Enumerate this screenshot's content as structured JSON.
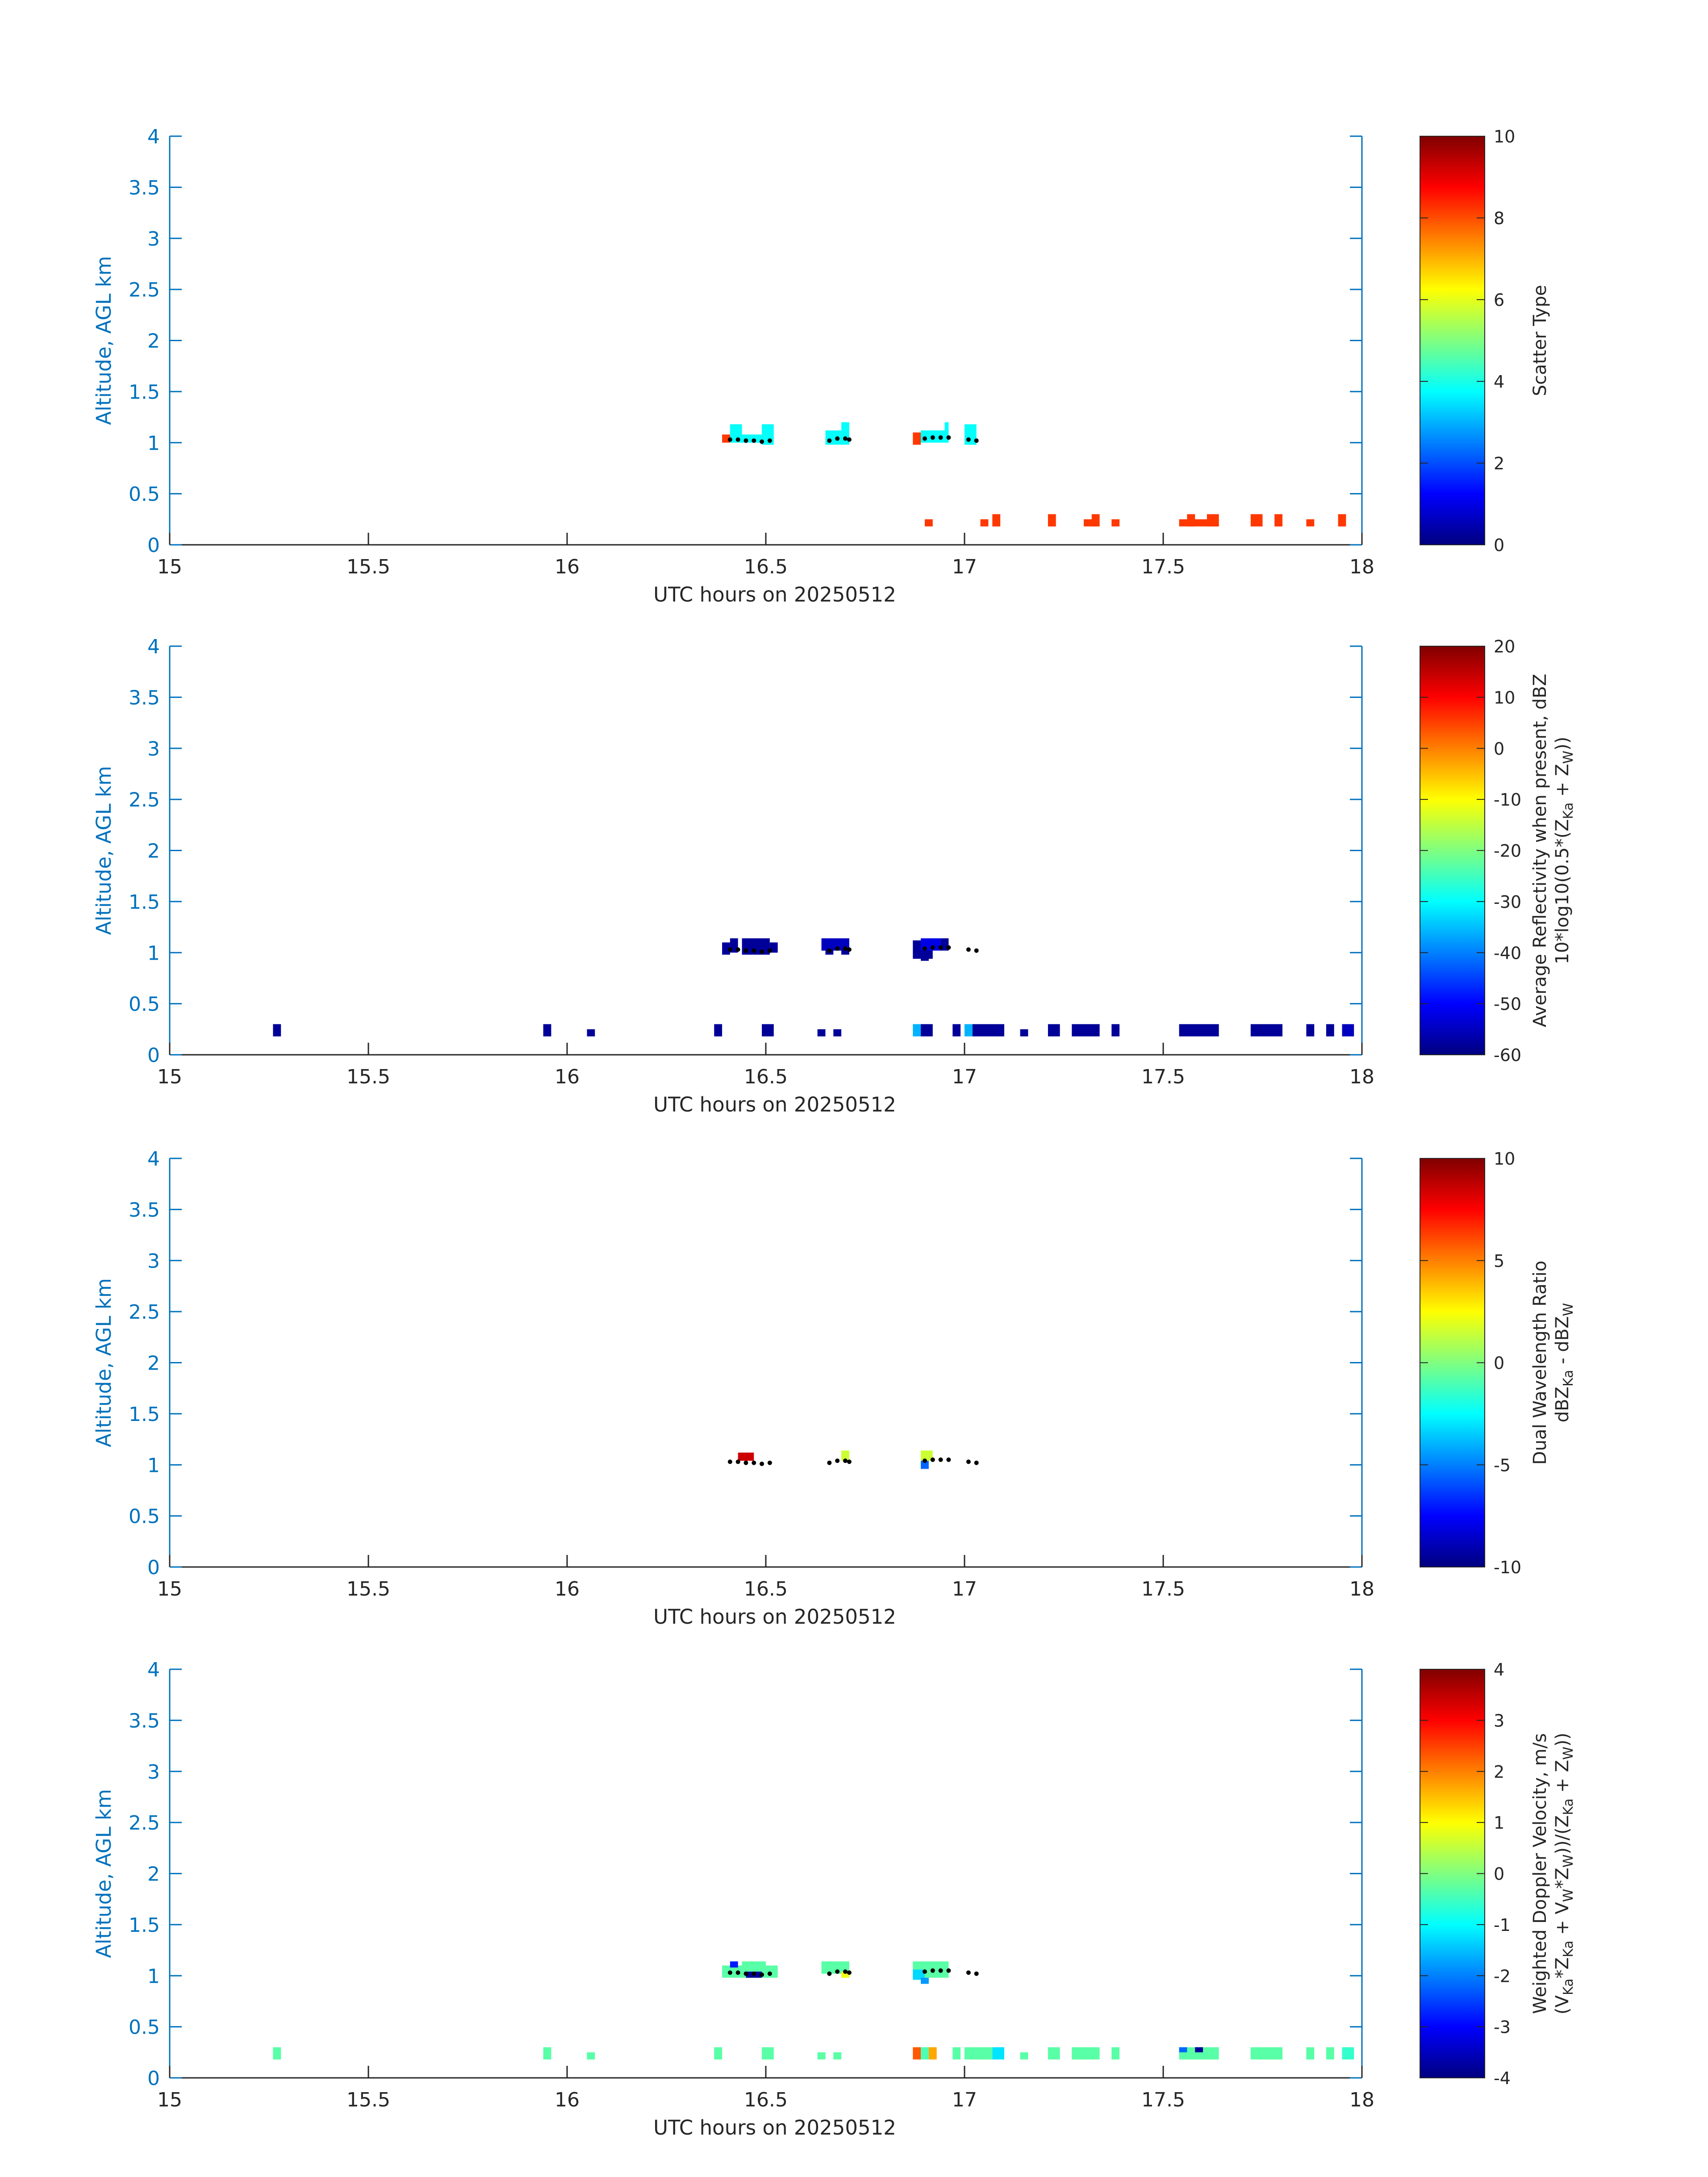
{
  "colors": {
    "axis_left": "#0072BD",
    "axis_right": "#0072BD",
    "axis_bottom": "#262626",
    "text": "#262626",
    "marker": "#000000"
  },
  "chart_data": [
    {
      "type": "heatmap",
      "xlabel": "UTC hours on 20250512",
      "ylabel": "Altitude, AGL km",
      "xlim": [
        15,
        18
      ],
      "ylim": [
        0,
        4
      ],
      "xticks": [
        "15",
        "15.5",
        "16",
        "16.5",
        "17",
        "17.5",
        "18"
      ],
      "yticks": [
        "0",
        "0.5",
        "1",
        "1.5",
        "2",
        "2.5",
        "3",
        "3.5",
        "4"
      ],
      "colormap": "jet",
      "clim": [
        0,
        10
      ],
      "colorbar_ticks": [
        "0",
        "2",
        "4",
        "6",
        "8",
        "10"
      ],
      "colorbar_label": "Scatter Type",
      "cells": [
        {
          "x0": 16.39,
          "x1": 16.41,
          "y0": 1.0,
          "y1": 1.08,
          "v": 8.2
        },
        {
          "x0": 16.41,
          "x1": 16.44,
          "y0": 1.0,
          "y1": 1.18,
          "v": 3.8
        },
        {
          "x0": 16.44,
          "x1": 16.49,
          "y0": 1.0,
          "y1": 1.08,
          "v": 3.8
        },
        {
          "x0": 16.49,
          "x1": 16.52,
          "y0": 0.98,
          "y1": 1.18,
          "v": 3.8
        },
        {
          "x0": 16.65,
          "x1": 16.71,
          "y0": 0.98,
          "y1": 1.12,
          "v": 3.8
        },
        {
          "x0": 16.69,
          "x1": 16.71,
          "y0": 1.1,
          "y1": 1.2,
          "v": 3.8
        },
        {
          "x0": 16.87,
          "x1": 16.89,
          "y0": 0.98,
          "y1": 1.1,
          "v": 8.2
        },
        {
          "x0": 16.89,
          "x1": 16.96,
          "y0": 1.0,
          "y1": 1.12,
          "v": 3.8
        },
        {
          "x0": 16.95,
          "x1": 16.96,
          "y0": 1.1,
          "y1": 1.2,
          "v": 3.8
        },
        {
          "x0": 17.0,
          "x1": 17.03,
          "y0": 0.98,
          "y1": 1.18,
          "v": 3.8
        },
        {
          "x0": 16.9,
          "x1": 16.92,
          "y0": 0.18,
          "y1": 0.25,
          "v": 8.2
        },
        {
          "x0": 17.04,
          "x1": 17.06,
          "y0": 0.18,
          "y1": 0.25,
          "v": 8.2
        },
        {
          "x0": 17.07,
          "x1": 17.09,
          "y0": 0.18,
          "y1": 0.3,
          "v": 8.2
        },
        {
          "x0": 17.21,
          "x1": 17.23,
          "y0": 0.18,
          "y1": 0.3,
          "v": 8.2
        },
        {
          "x0": 17.3,
          "x1": 17.33,
          "y0": 0.18,
          "y1": 0.25,
          "v": 8.2
        },
        {
          "x0": 17.32,
          "x1": 17.34,
          "y0": 0.18,
          "y1": 0.3,
          "v": 8.2
        },
        {
          "x0": 17.37,
          "x1": 17.39,
          "y0": 0.18,
          "y1": 0.25,
          "v": 8.2
        },
        {
          "x0": 17.54,
          "x1": 17.64,
          "y0": 0.18,
          "y1": 0.25,
          "v": 8.2
        },
        {
          "x0": 17.56,
          "x1": 17.58,
          "y0": 0.18,
          "y1": 0.3,
          "v": 8.2
        },
        {
          "x0": 17.61,
          "x1": 17.64,
          "y0": 0.18,
          "y1": 0.3,
          "v": 8.2
        },
        {
          "x0": 17.72,
          "x1": 17.75,
          "y0": 0.18,
          "y1": 0.3,
          "v": 8.2
        },
        {
          "x0": 17.78,
          "x1": 17.8,
          "y0": 0.18,
          "y1": 0.3,
          "v": 8.2
        },
        {
          "x0": 17.86,
          "x1": 17.88,
          "y0": 0.18,
          "y1": 0.25,
          "v": 8.2
        },
        {
          "x0": 17.94,
          "x1": 17.96,
          "y0": 0.18,
          "y1": 0.3,
          "v": 8.2
        }
      ]
    },
    {
      "type": "heatmap",
      "xlabel": "UTC hours on 20250512",
      "ylabel": "Altitude, AGL km",
      "xlim": [
        15,
        18
      ],
      "ylim": [
        0,
        4
      ],
      "xticks": [
        "15",
        "15.5",
        "16",
        "16.5",
        "17",
        "17.5",
        "18"
      ],
      "yticks": [
        "0",
        "0.5",
        "1",
        "1.5",
        "2",
        "2.5",
        "3",
        "3.5",
        "4"
      ],
      "colormap": "jet",
      "clim": [
        -60,
        20
      ],
      "colorbar_ticks": [
        "-60",
        "-50",
        "-40",
        "-30",
        "-20",
        "-10",
        "0",
        "10",
        "20"
      ],
      "colorbar_label": "Average Reflectivity when present, dBZ",
      "colorbar_label2": "10*log10(0.5*(Z",
      "colorbar_label2_sub1": "Ka",
      "colorbar_label2_mid": " + Z",
      "colorbar_label2_sub2": "W",
      "colorbar_label2_end": "))",
      "cells": [
        {
          "x0": 15.26,
          "x1": 15.28,
          "y0": 0.18,
          "y1": 0.3,
          "v": -58
        },
        {
          "x0": 15.94,
          "x1": 15.96,
          "y0": 0.18,
          "y1": 0.3,
          "v": -58
        },
        {
          "x0": 16.05,
          "x1": 16.07,
          "y0": 0.18,
          "y1": 0.25,
          "v": -58
        },
        {
          "x0": 16.37,
          "x1": 16.39,
          "y0": 0.18,
          "y1": 0.3,
          "v": -58
        },
        {
          "x0": 16.49,
          "x1": 16.52,
          "y0": 0.18,
          "y1": 0.3,
          "v": -58
        },
        {
          "x0": 16.63,
          "x1": 16.65,
          "y0": 0.18,
          "y1": 0.25,
          "v": -58
        },
        {
          "x0": 16.67,
          "x1": 16.69,
          "y0": 0.18,
          "y1": 0.25,
          "v": -58
        },
        {
          "x0": 16.87,
          "x1": 16.89,
          "y0": 0.18,
          "y1": 0.3,
          "v": -36
        },
        {
          "x0": 16.89,
          "x1": 16.92,
          "y0": 0.18,
          "y1": 0.3,
          "v": -58
        },
        {
          "x0": 16.97,
          "x1": 16.99,
          "y0": 0.18,
          "y1": 0.3,
          "v": -58
        },
        {
          "x0": 17.0,
          "x1": 17.02,
          "y0": 0.18,
          "y1": 0.3,
          "v": -36
        },
        {
          "x0": 17.02,
          "x1": 17.1,
          "y0": 0.18,
          "y1": 0.3,
          "v": -58
        },
        {
          "x0": 17.14,
          "x1": 17.16,
          "y0": 0.18,
          "y1": 0.25,
          "v": -58
        },
        {
          "x0": 17.21,
          "x1": 17.24,
          "y0": 0.18,
          "y1": 0.3,
          "v": -58
        },
        {
          "x0": 17.27,
          "x1": 17.34,
          "y0": 0.18,
          "y1": 0.3,
          "v": -58
        },
        {
          "x0": 17.37,
          "x1": 17.39,
          "y0": 0.18,
          "y1": 0.3,
          "v": -58
        },
        {
          "x0": 17.54,
          "x1": 17.64,
          "y0": 0.18,
          "y1": 0.3,
          "v": -58
        },
        {
          "x0": 17.72,
          "x1": 17.8,
          "y0": 0.18,
          "y1": 0.3,
          "v": -58
        },
        {
          "x0": 17.86,
          "x1": 17.88,
          "y0": 0.18,
          "y1": 0.3,
          "v": -58
        },
        {
          "x0": 17.91,
          "x1": 17.93,
          "y0": 0.18,
          "y1": 0.3,
          "v": -58
        },
        {
          "x0": 17.95,
          "x1": 17.98,
          "y0": 0.18,
          "y1": 0.3,
          "v": -55
        },
        {
          "x0": 16.39,
          "x1": 16.41,
          "y0": 0.98,
          "y1": 1.1,
          "v": -58
        },
        {
          "x0": 16.41,
          "x1": 16.43,
          "y0": 1.0,
          "y1": 1.14,
          "v": -58
        },
        {
          "x0": 16.44,
          "x1": 16.51,
          "y0": 0.98,
          "y1": 1.14,
          "v": -58
        },
        {
          "x0": 16.51,
          "x1": 16.53,
          "y0": 1.0,
          "y1": 1.1,
          "v": -58
        },
        {
          "x0": 16.64,
          "x1": 16.71,
          "y0": 1.02,
          "y1": 1.14,
          "v": -55
        },
        {
          "x0": 16.65,
          "x1": 16.67,
          "y0": 0.98,
          "y1": 1.04,
          "v": -58
        },
        {
          "x0": 16.69,
          "x1": 16.71,
          "y0": 0.98,
          "y1": 1.04,
          "v": -58
        },
        {
          "x0": 16.87,
          "x1": 16.92,
          "y0": 0.94,
          "y1": 1.12,
          "v": -58
        },
        {
          "x0": 16.89,
          "x1": 16.91,
          "y0": 0.92,
          "y1": 1.1,
          "v": -58
        },
        {
          "x0": 16.89,
          "x1": 16.94,
          "y0": 1.02,
          "y1": 1.14,
          "v": -52
        },
        {
          "x0": 16.94,
          "x1": 16.96,
          "y0": 1.02,
          "y1": 1.14,
          "v": -58
        }
      ]
    },
    {
      "type": "heatmap",
      "xlabel": "UTC hours on 20250512",
      "ylabel": "Altitude, AGL km",
      "xlim": [
        15,
        18
      ],
      "ylim": [
        0,
        4
      ],
      "xticks": [
        "15",
        "15.5",
        "16",
        "16.5",
        "17",
        "17.5",
        "18"
      ],
      "yticks": [
        "0",
        "0.5",
        "1",
        "1.5",
        "2",
        "2.5",
        "3",
        "3.5",
        "4"
      ],
      "colormap": "jet",
      "clim": [
        -10,
        10
      ],
      "colorbar_ticks": [
        "-10",
        "-5",
        "0",
        "5",
        "10"
      ],
      "colorbar_label": "Dual Wavelength Ratio",
      "colorbar_label2": "dBZ",
      "colorbar_label2_sub1": "Ka",
      "colorbar_label2_mid": " - dBZ",
      "colorbar_label2_sub2": "W",
      "colorbar_label2_end": "",
      "cells": [
        {
          "x0": 16.43,
          "x1": 16.47,
          "y0": 1.04,
          "y1": 1.12,
          "v": 8.5
        },
        {
          "x0": 16.69,
          "x1": 16.71,
          "y0": 1.04,
          "y1": 1.14,
          "v": 1.5
        },
        {
          "x0": 16.89,
          "x1": 16.92,
          "y0": 1.04,
          "y1": 1.14,
          "v": 1.5
        },
        {
          "x0": 16.89,
          "x1": 16.91,
          "y0": 0.96,
          "y1": 1.04,
          "v": -5.5
        }
      ]
    },
    {
      "type": "heatmap",
      "xlabel": "UTC hours on 20250512",
      "ylabel": "Altitude, AGL km",
      "xlim": [
        15,
        18
      ],
      "ylim": [
        0,
        4
      ],
      "xticks": [
        "15",
        "15.5",
        "16",
        "16.5",
        "17",
        "17.5",
        "18"
      ],
      "yticks": [
        "0",
        "0.5",
        "1",
        "1.5",
        "2",
        "2.5",
        "3",
        "3.5",
        "4"
      ],
      "colormap": "jet",
      "clim": [
        -4,
        4
      ],
      "colorbar_ticks": [
        "-4",
        "-3",
        "-2",
        "-1",
        "0",
        "1",
        "2",
        "3",
        "4"
      ],
      "colorbar_label": "Weighted Doppler Velocity, m/s",
      "colorbar_label2": "(V",
      "colorbar_label2_sub1": "Ka",
      "colorbar_label2_mid": "*Z",
      "colorbar_label2_sub2": "Ka",
      "colorbar_label2_end": " + V",
      "colorbar_label2_rest": [
        [
          "W",
          "sub"
        ],
        [
          "*Z",
          ""
        ],
        [
          "W",
          "sub"
        ],
        [
          "))/(Z",
          ""
        ],
        [
          "Ka",
          "sub"
        ],
        [
          " + Z",
          ""
        ],
        [
          "W",
          "sub"
        ],
        [
          "))",
          ""
        ]
      ],
      "cells": [
        {
          "x0": 15.26,
          "x1": 15.28,
          "y0": 0.18,
          "y1": 0.3,
          "v": -0.3
        },
        {
          "x0": 15.94,
          "x1": 15.96,
          "y0": 0.18,
          "y1": 0.3,
          "v": -0.3
        },
        {
          "x0": 16.05,
          "x1": 16.07,
          "y0": 0.18,
          "y1": 0.25,
          "v": -0.3
        },
        {
          "x0": 16.37,
          "x1": 16.39,
          "y0": 0.18,
          "y1": 0.3,
          "v": -0.3
        },
        {
          "x0": 16.49,
          "x1": 16.52,
          "y0": 0.18,
          "y1": 0.3,
          "v": -0.3
        },
        {
          "x0": 16.63,
          "x1": 16.65,
          "y0": 0.18,
          "y1": 0.25,
          "v": -0.3
        },
        {
          "x0": 16.67,
          "x1": 16.69,
          "y0": 0.18,
          "y1": 0.25,
          "v": -0.3
        },
        {
          "x0": 16.87,
          "x1": 16.89,
          "y0": 0.18,
          "y1": 0.3,
          "v": 2.3
        },
        {
          "x0": 16.89,
          "x1": 16.91,
          "y0": 0.18,
          "y1": 0.3,
          "v": -0.4
        },
        {
          "x0": 16.91,
          "x1": 16.93,
          "y0": 0.18,
          "y1": 0.3,
          "v": 1.7
        },
        {
          "x0": 16.97,
          "x1": 16.99,
          "y0": 0.18,
          "y1": 0.3,
          "v": -0.3
        },
        {
          "x0": 17.0,
          "x1": 17.07,
          "y0": 0.18,
          "y1": 0.3,
          "v": -0.3
        },
        {
          "x0": 17.07,
          "x1": 17.1,
          "y0": 0.18,
          "y1": 0.3,
          "v": -1.2
        },
        {
          "x0": 17.14,
          "x1": 17.16,
          "y0": 0.18,
          "y1": 0.25,
          "v": -0.3
        },
        {
          "x0": 17.21,
          "x1": 17.24,
          "y0": 0.18,
          "y1": 0.3,
          "v": -0.3
        },
        {
          "x0": 17.27,
          "x1": 17.34,
          "y0": 0.18,
          "y1": 0.3,
          "v": -0.3
        },
        {
          "x0": 17.37,
          "x1": 17.39,
          "y0": 0.18,
          "y1": 0.3,
          "v": -0.3
        },
        {
          "x0": 17.54,
          "x1": 17.64,
          "y0": 0.18,
          "y1": 0.3,
          "v": -0.3
        },
        {
          "x0": 17.54,
          "x1": 17.56,
          "y0": 0.25,
          "y1": 0.3,
          "v": -2.2
        },
        {
          "x0": 17.58,
          "x1": 17.6,
          "y0": 0.25,
          "y1": 0.3,
          "v": -3.8
        },
        {
          "x0": 17.72,
          "x1": 17.8,
          "y0": 0.18,
          "y1": 0.3,
          "v": -0.3
        },
        {
          "x0": 17.86,
          "x1": 17.88,
          "y0": 0.18,
          "y1": 0.3,
          "v": -0.3
        },
        {
          "x0": 17.91,
          "x1": 17.93,
          "y0": 0.18,
          "y1": 0.3,
          "v": -0.3
        },
        {
          "x0": 17.95,
          "x1": 17.98,
          "y0": 0.18,
          "y1": 0.3,
          "v": -0.6
        },
        {
          "x0": 16.39,
          "x1": 16.53,
          "y0": 0.98,
          "y1": 1.1,
          "v": -0.3
        },
        {
          "x0": 16.41,
          "x1": 16.43,
          "y0": 1.08,
          "y1": 1.14,
          "v": -2.8
        },
        {
          "x0": 16.44,
          "x1": 16.5,
          "y0": 1.06,
          "y1": 1.14,
          "v": -0.3
        },
        {
          "x0": 16.45,
          "x1": 16.49,
          "y0": 0.98,
          "y1": 1.04,
          "v": -3.8
        },
        {
          "x0": 16.64,
          "x1": 16.71,
          "y0": 1.02,
          "y1": 1.14,
          "v": -0.3
        },
        {
          "x0": 16.69,
          "x1": 16.71,
          "y0": 0.98,
          "y1": 1.04,
          "v": 0.9
        },
        {
          "x0": 16.87,
          "x1": 16.96,
          "y0": 0.98,
          "y1": 1.14,
          "v": -0.3
        },
        {
          "x0": 16.87,
          "x1": 16.9,
          "y0": 0.96,
          "y1": 1.06,
          "v": -1.3
        },
        {
          "x0": 16.89,
          "x1": 16.91,
          "y0": 0.92,
          "y1": 0.98,
          "v": -1.8
        }
      ]
    }
  ],
  "markers": [
    [
      16.41,
      1.03
    ],
    [
      16.43,
      1.03
    ],
    [
      16.45,
      1.02
    ],
    [
      16.47,
      1.02
    ],
    [
      16.49,
      1.01
    ],
    [
      16.51,
      1.02
    ],
    [
      16.66,
      1.02
    ],
    [
      16.68,
      1.04
    ],
    [
      16.7,
      1.04
    ],
    [
      16.71,
      1.03
    ],
    [
      16.9,
      1.04
    ],
    [
      16.92,
      1.05
    ],
    [
      16.94,
      1.05
    ],
    [
      16.96,
      1.05
    ],
    [
      17.01,
      1.03
    ],
    [
      17.03,
      1.02
    ]
  ]
}
